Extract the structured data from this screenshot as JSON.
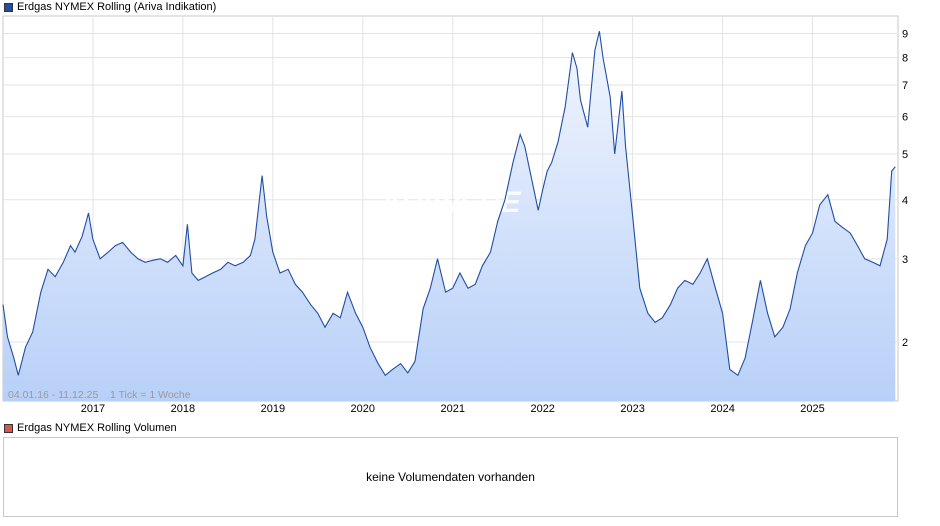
{
  "legend": {
    "price_label": "Erdgas NYMEX Rolling (Ariva Indikation)",
    "price_color": "#1f4ea6",
    "volume_label": "Erdgas NYMEX Rolling Volumen",
    "volume_color": "#d9534f"
  },
  "watermark": "ARIVA.DE",
  "range_info": "04.01.16 - 11.12.25    1 Tick = 1 Woche",
  "volume": {
    "empty_message": "keine Volumendaten vorhanden"
  },
  "chart_data": {
    "type": "area",
    "yscale": "log",
    "ylim": [
      1.5,
      9.8
    ],
    "xlim": [
      2016.0,
      2025.95
    ],
    "y_ticks": [
      2,
      3,
      4,
      5,
      6,
      7,
      8,
      9
    ],
    "y_tick_labels": [
      "2",
      "3",
      "4",
      "5",
      "6",
      "7",
      "8",
      "9"
    ],
    "x_ticks": [
      2017,
      2018,
      2019,
      2020,
      2021,
      2022,
      2023,
      2024,
      2025
    ],
    "x_tick_labels": [
      "2017",
      "2018",
      "2019",
      "2020",
      "2021",
      "2022",
      "2023",
      "2024",
      "2025"
    ],
    "grid": true,
    "series": [
      {
        "color": "#1f4ea6",
        "points": [
          [
            2016.0,
            2.4
          ],
          [
            2016.05,
            2.05
          ],
          [
            2016.12,
            1.85
          ],
          [
            2016.17,
            1.7
          ],
          [
            2016.25,
            1.95
          ],
          [
            2016.33,
            2.1
          ],
          [
            2016.42,
            2.55
          ],
          [
            2016.5,
            2.85
          ],
          [
            2016.58,
            2.75
          ],
          [
            2016.67,
            2.95
          ],
          [
            2016.75,
            3.2
          ],
          [
            2016.8,
            3.1
          ],
          [
            2016.88,
            3.35
          ],
          [
            2016.95,
            3.75
          ],
          [
            2017.0,
            3.3
          ],
          [
            2017.08,
            3.0
          ],
          [
            2017.17,
            3.1
          ],
          [
            2017.25,
            3.2
          ],
          [
            2017.33,
            3.25
          ],
          [
            2017.42,
            3.1
          ],
          [
            2017.5,
            3.0
          ],
          [
            2017.58,
            2.95
          ],
          [
            2017.67,
            2.98
          ],
          [
            2017.75,
            3.0
          ],
          [
            2017.83,
            2.95
          ],
          [
            2017.92,
            3.05
          ],
          [
            2018.0,
            2.9
          ],
          [
            2018.05,
            3.55
          ],
          [
            2018.1,
            2.8
          ],
          [
            2018.17,
            2.7
          ],
          [
            2018.25,
            2.75
          ],
          [
            2018.33,
            2.8
          ],
          [
            2018.42,
            2.85
          ],
          [
            2018.5,
            2.95
          ],
          [
            2018.58,
            2.9
          ],
          [
            2018.67,
            2.95
          ],
          [
            2018.75,
            3.05
          ],
          [
            2018.8,
            3.3
          ],
          [
            2018.88,
            4.5
          ],
          [
            2018.93,
            3.7
          ],
          [
            2019.0,
            3.1
          ],
          [
            2019.08,
            2.8
          ],
          [
            2019.17,
            2.85
          ],
          [
            2019.25,
            2.65
          ],
          [
            2019.33,
            2.55
          ],
          [
            2019.42,
            2.4
          ],
          [
            2019.5,
            2.3
          ],
          [
            2019.58,
            2.15
          ],
          [
            2019.67,
            2.3
          ],
          [
            2019.75,
            2.25
          ],
          [
            2019.83,
            2.55
          ],
          [
            2019.92,
            2.3
          ],
          [
            2020.0,
            2.15
          ],
          [
            2020.08,
            1.95
          ],
          [
            2020.17,
            1.8
          ],
          [
            2020.25,
            1.7
          ],
          [
            2020.33,
            1.75
          ],
          [
            2020.42,
            1.8
          ],
          [
            2020.5,
            1.72
          ],
          [
            2020.58,
            1.82
          ],
          [
            2020.67,
            2.35
          ],
          [
            2020.75,
            2.6
          ],
          [
            2020.83,
            3.0
          ],
          [
            2020.92,
            2.55
          ],
          [
            2021.0,
            2.6
          ],
          [
            2021.08,
            2.8
          ],
          [
            2021.17,
            2.6
          ],
          [
            2021.25,
            2.65
          ],
          [
            2021.33,
            2.9
          ],
          [
            2021.42,
            3.1
          ],
          [
            2021.5,
            3.6
          ],
          [
            2021.58,
            4.0
          ],
          [
            2021.67,
            4.8
          ],
          [
            2021.75,
            5.5
          ],
          [
            2021.8,
            5.2
          ],
          [
            2021.88,
            4.4
          ],
          [
            2021.95,
            3.8
          ],
          [
            2022.0,
            4.2
          ],
          [
            2022.05,
            4.6
          ],
          [
            2022.1,
            4.8
          ],
          [
            2022.17,
            5.3
          ],
          [
            2022.25,
            6.3
          ],
          [
            2022.33,
            8.2
          ],
          [
            2022.38,
            7.6
          ],
          [
            2022.42,
            6.5
          ],
          [
            2022.5,
            5.7
          ],
          [
            2022.58,
            8.3
          ],
          [
            2022.63,
            9.1
          ],
          [
            2022.67,
            8.0
          ],
          [
            2022.75,
            6.6
          ],
          [
            2022.8,
            5.0
          ],
          [
            2022.88,
            6.8
          ],
          [
            2022.92,
            5.2
          ],
          [
            2023.0,
            3.7
          ],
          [
            2023.08,
            2.6
          ],
          [
            2023.17,
            2.3
          ],
          [
            2023.25,
            2.2
          ],
          [
            2023.33,
            2.25
          ],
          [
            2023.42,
            2.4
          ],
          [
            2023.5,
            2.6
          ],
          [
            2023.58,
            2.7
          ],
          [
            2023.67,
            2.65
          ],
          [
            2023.75,
            2.8
          ],
          [
            2023.83,
            3.0
          ],
          [
            2023.92,
            2.6
          ],
          [
            2024.0,
            2.3
          ],
          [
            2024.08,
            1.75
          ],
          [
            2024.17,
            1.7
          ],
          [
            2024.25,
            1.85
          ],
          [
            2024.33,
            2.2
          ],
          [
            2024.42,
            2.7
          ],
          [
            2024.5,
            2.3
          ],
          [
            2024.58,
            2.05
          ],
          [
            2024.67,
            2.15
          ],
          [
            2024.75,
            2.35
          ],
          [
            2024.83,
            2.8
          ],
          [
            2024.92,
            3.2
          ],
          [
            2025.0,
            3.4
          ],
          [
            2025.08,
            3.9
          ],
          [
            2025.17,
            4.1
          ],
          [
            2025.25,
            3.6
          ],
          [
            2025.33,
            3.5
          ],
          [
            2025.42,
            3.4
          ],
          [
            2025.5,
            3.2
          ],
          [
            2025.58,
            3.0
          ],
          [
            2025.67,
            2.95
          ],
          [
            2025.75,
            2.9
          ],
          [
            2025.83,
            3.3
          ],
          [
            2025.88,
            4.6
          ],
          [
            2025.92,
            4.7
          ]
        ]
      }
    ]
  }
}
